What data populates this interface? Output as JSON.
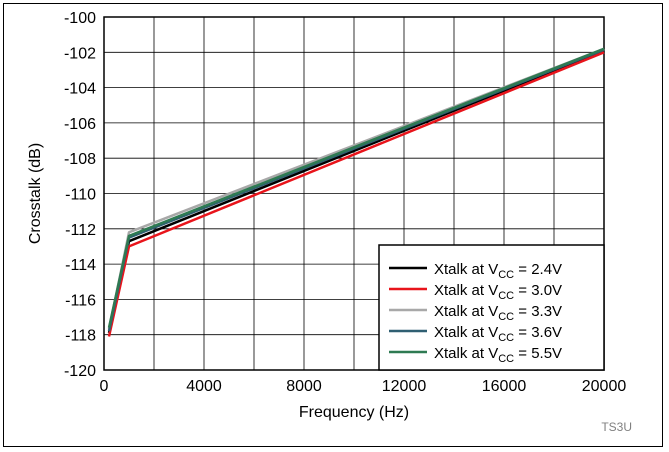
{
  "chart_data": {
    "type": "line",
    "xlabel": "Frequency (Hz)",
    "ylabel": "Crosstalk (dB)",
    "xlim": [
      0,
      20000
    ],
    "ylim": [
      -120,
      -100
    ],
    "xticks": [
      "0",
      "4000",
      "8000",
      "12000",
      "16000",
      "20000"
    ],
    "yticks": [
      "-100",
      "-102",
      "-104",
      "-106",
      "-108",
      "-110",
      "-112",
      "-114",
      "-116",
      "-118",
      "-120"
    ],
    "grid": true,
    "legend_position": "bottom-right",
    "figure_id": "TS3U",
    "series": [
      {
        "name": "Xtalk at VCC = 2.4V",
        "label": {
          "prefix": "Xtalk at V",
          "sub": "CC",
          "suffix": " = 2.4V"
        },
        "color": "#000000",
        "x": [
          200,
          1000,
          20000
        ],
        "y": [
          -117.9,
          -112.7,
          -101.9
        ]
      },
      {
        "name": "Xtalk at VCC = 3.0V",
        "label": {
          "prefix": "Xtalk at V",
          "sub": "CC",
          "suffix": " = 3.0V"
        },
        "color": "#e8141b",
        "x": [
          200,
          1000,
          20000
        ],
        "y": [
          -118.1,
          -113.0,
          -102.0
        ]
      },
      {
        "name": "Xtalk at VCC = 3.3V",
        "label": {
          "prefix": "Xtalk at V",
          "sub": "CC",
          "suffix": " = 3.3V"
        },
        "color": "#a8a8a8",
        "x": [
          200,
          1000,
          20000
        ],
        "y": [
          -117.7,
          -112.2,
          -101.8
        ]
      },
      {
        "name": "Xtalk at VCC = 3.6V",
        "label": {
          "prefix": "Xtalk at V",
          "sub": "CC",
          "suffix": " = 3.6V"
        },
        "color": "#2f5f72",
        "x": [
          200,
          1000,
          20000
        ],
        "y": [
          -117.8,
          -112.5,
          -101.85
        ]
      },
      {
        "name": "Xtalk at VCC = 5.5V",
        "label": {
          "prefix": "Xtalk at V",
          "sub": "CC",
          "suffix": " = 5.5V"
        },
        "color": "#2e7a52",
        "x": [
          200,
          1000,
          20000
        ],
        "y": [
          -117.6,
          -112.4,
          -101.8
        ]
      }
    ]
  }
}
